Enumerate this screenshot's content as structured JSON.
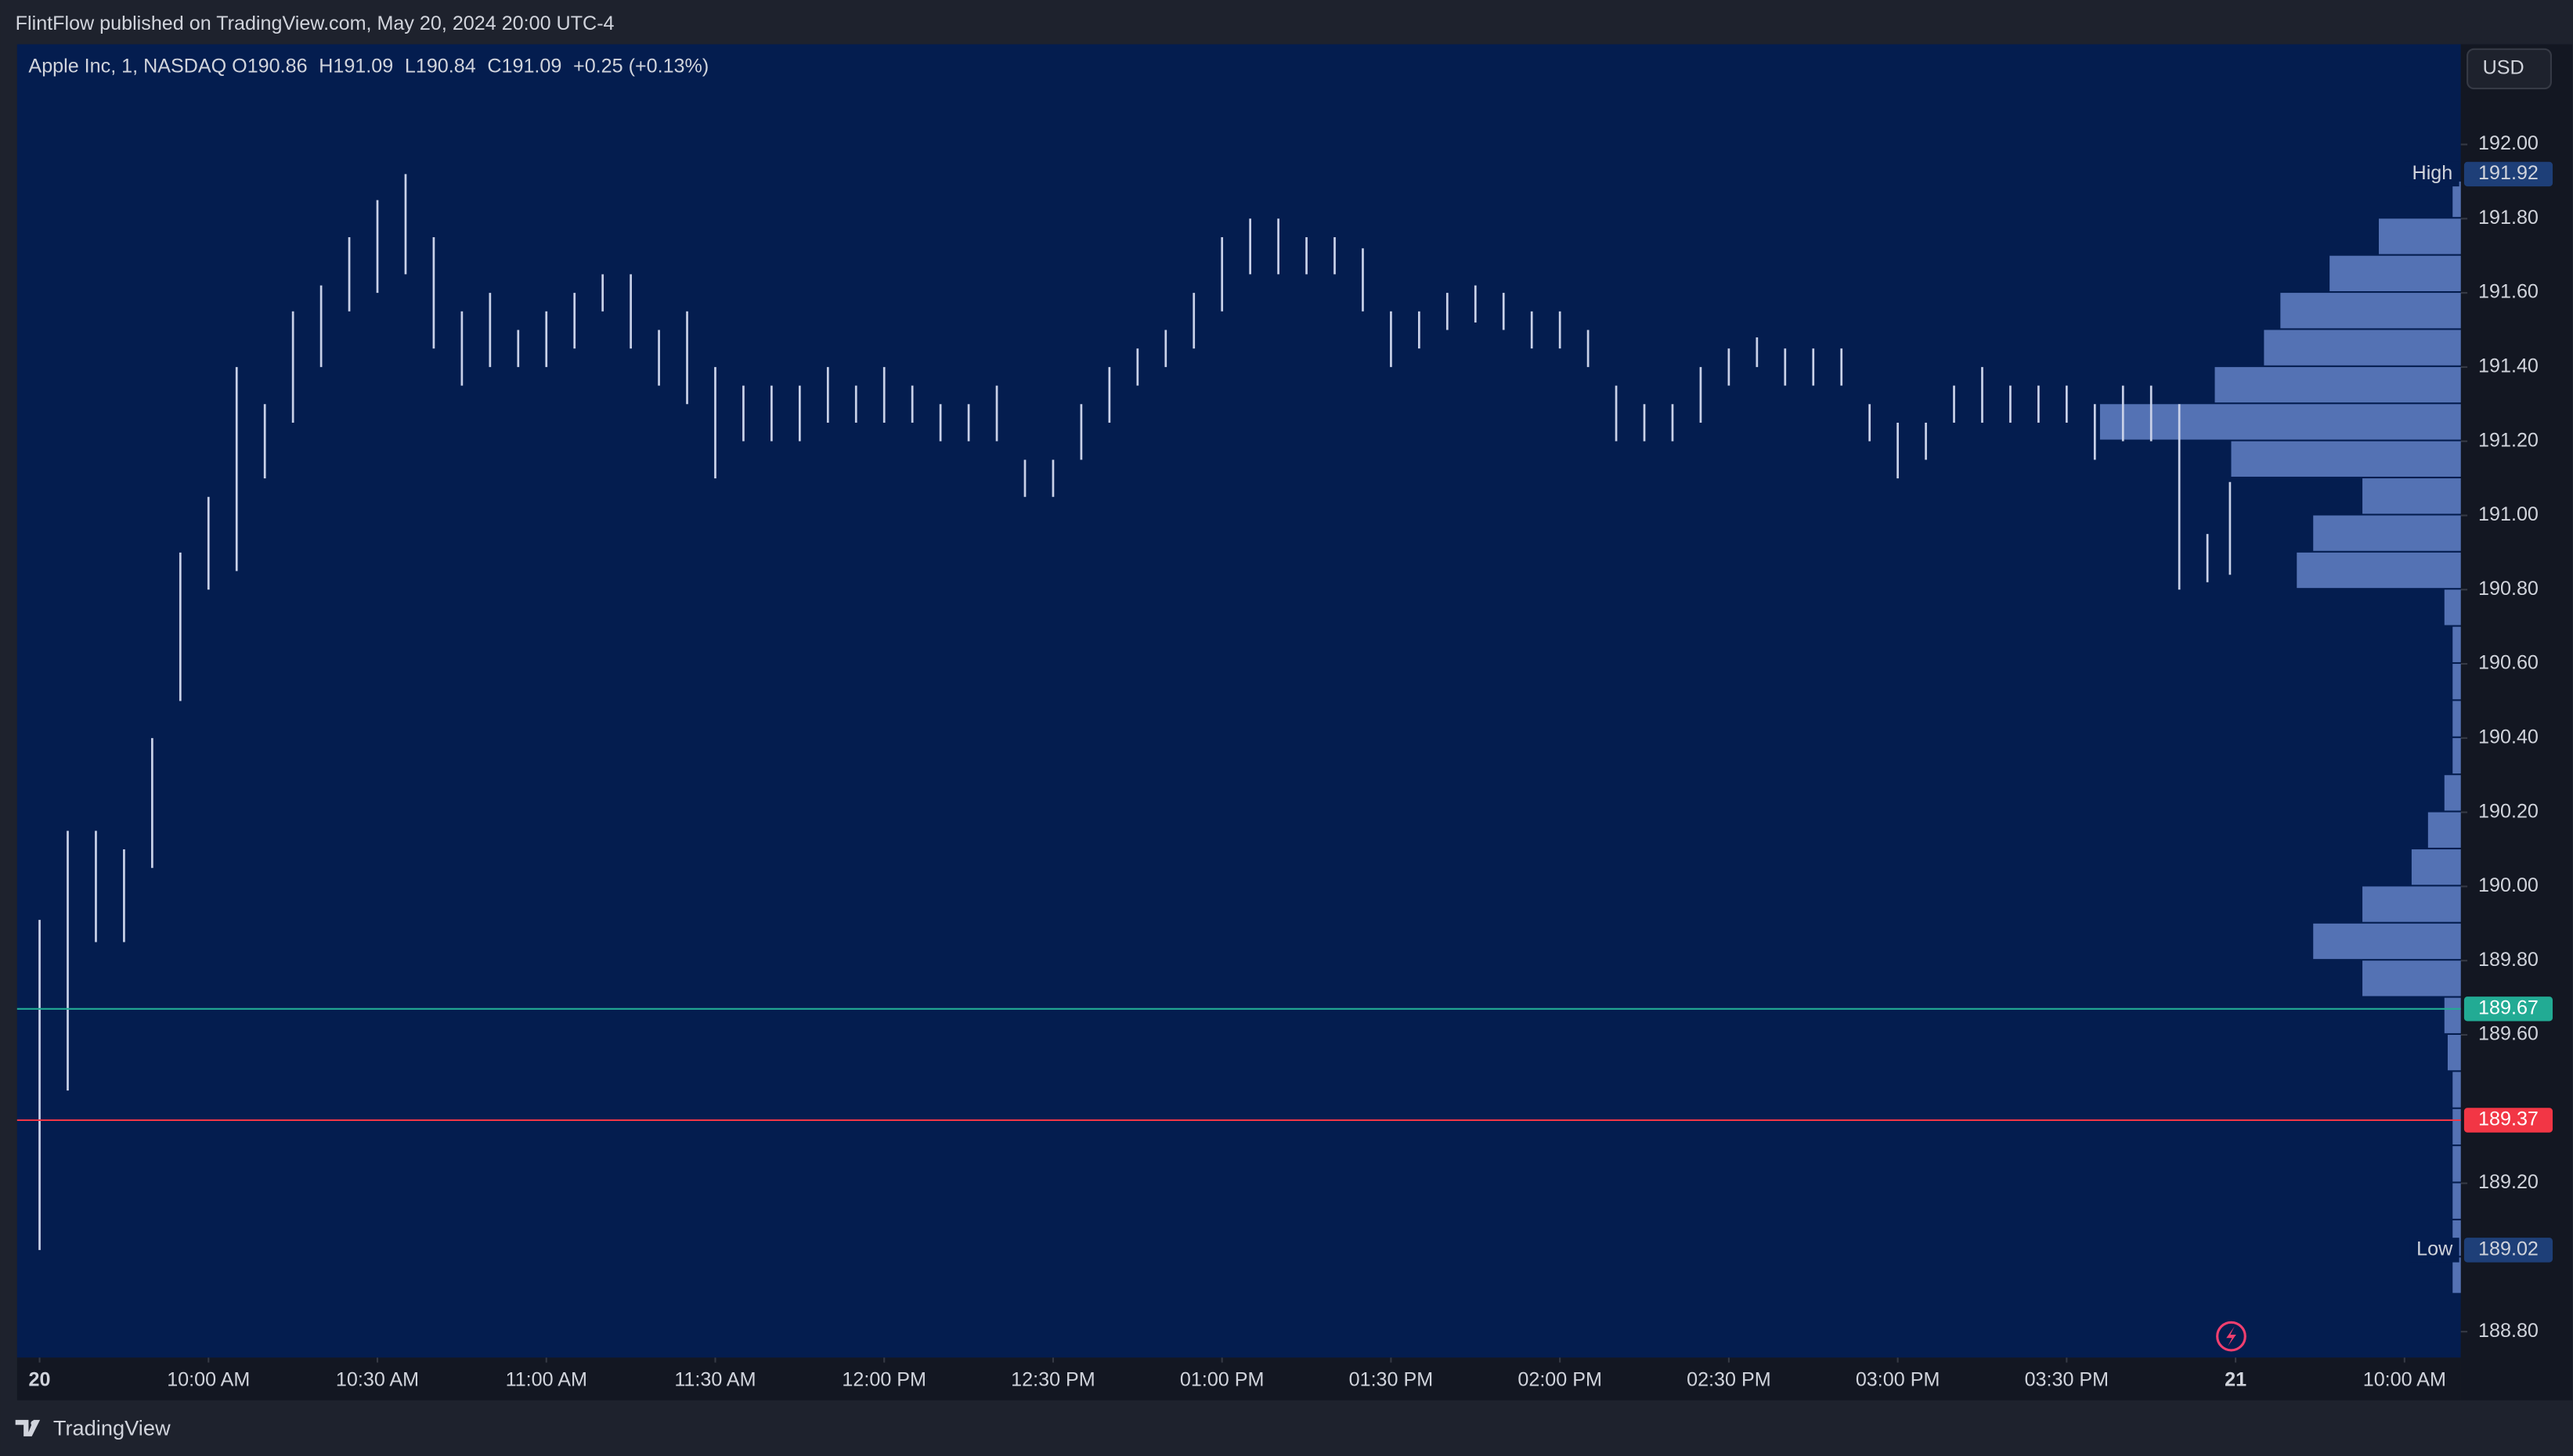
{
  "header": {
    "published": "FlintFlow published on TradingView.com, May 20, 2024 20:00 UTC-4"
  },
  "footer": {
    "brand": "TradingView"
  },
  "currency_button": "USD",
  "chart_data": {
    "type": "ohlc",
    "title": "Apple Inc, 1, NASDAQ",
    "ohlc_legend": [
      "O190.86",
      "H191.09",
      "L190.84",
      "C191.09",
      "+0.25 (+0.13%)"
    ],
    "color": "#c9d1e8",
    "x": [
      0,
      5,
      10,
      15,
      20,
      25,
      30,
      35,
      40,
      45,
      50,
      55,
      60,
      65,
      70,
      75,
      80,
      85,
      90,
      95,
      100,
      105,
      110,
      115,
      120,
      125,
      130,
      135,
      140,
      145,
      150,
      155,
      160,
      165,
      170,
      175,
      180,
      185,
      190,
      195,
      200,
      205,
      210,
      215,
      220,
      225,
      230,
      235,
      240,
      245,
      250,
      255,
      260,
      265,
      270,
      275,
      280,
      285,
      290,
      295,
      300,
      305,
      310,
      315,
      320,
      325,
      330,
      335,
      340,
      345,
      350,
      355,
      360,
      365,
      370,
      375,
      380,
      385,
      389
    ],
    "high": [
      189.91,
      190.15,
      190.15,
      190.1,
      190.4,
      190.9,
      191.05,
      191.4,
      191.3,
      191.55,
      191.62,
      191.75,
      191.85,
      191.92,
      191.75,
      191.55,
      191.6,
      191.5,
      191.55,
      191.6,
      191.65,
      191.65,
      191.5,
      191.55,
      191.4,
      191.35,
      191.35,
      191.35,
      191.4,
      191.35,
      191.4,
      191.35,
      191.3,
      191.3,
      191.35,
      191.15,
      191.15,
      191.3,
      191.4,
      191.45,
      191.5,
      191.6,
      191.75,
      191.8,
      191.8,
      191.75,
      191.75,
      191.72,
      191.55,
      191.55,
      191.6,
      191.62,
      191.6,
      191.55,
      191.55,
      191.5,
      191.35,
      191.3,
      191.3,
      191.4,
      191.45,
      191.48,
      191.45,
      191.45,
      191.45,
      191.3,
      191.25,
      191.25,
      191.35,
      191.4,
      191.35,
      191.35,
      191.35,
      191.3,
      191.35,
      191.35,
      191.3,
      190.95,
      191.09
    ],
    "low": [
      189.02,
      189.45,
      189.85,
      189.85,
      190.05,
      190.5,
      190.8,
      190.85,
      191.1,
      191.25,
      191.4,
      191.55,
      191.6,
      191.65,
      191.45,
      191.35,
      191.4,
      191.4,
      191.4,
      191.45,
      191.55,
      191.45,
      191.35,
      191.3,
      191.1,
      191.2,
      191.2,
      191.2,
      191.25,
      191.25,
      191.25,
      191.25,
      191.2,
      191.2,
      191.2,
      191.05,
      191.05,
      191.15,
      191.25,
      191.35,
      191.4,
      191.45,
      191.55,
      191.65,
      191.65,
      191.65,
      191.65,
      191.55,
      191.4,
      191.45,
      191.5,
      191.52,
      191.5,
      191.45,
      191.45,
      191.4,
      191.2,
      191.2,
      191.2,
      191.25,
      191.35,
      191.4,
      191.35,
      191.35,
      191.35,
      191.2,
      191.1,
      191.15,
      191.25,
      191.25,
      191.25,
      191.25,
      191.25,
      191.15,
      191.2,
      191.2,
      190.8,
      190.82,
      190.84
    ],
    "xlim": [
      -4,
      430
    ],
    "xticks": [
      {
        "value": 0,
        "label": "20"
      },
      {
        "value": 30,
        "label": "10:00 AM"
      },
      {
        "value": 60,
        "label": "10:30 AM"
      },
      {
        "value": 90,
        "label": "11:00 AM"
      },
      {
        "value": 120,
        "label": "11:30 AM"
      },
      {
        "value": 150,
        "label": "12:00 PM"
      },
      {
        "value": 180,
        "label": "12:30 PM"
      },
      {
        "value": 210,
        "label": "01:00 PM"
      },
      {
        "value": 240,
        "label": "01:30 PM"
      },
      {
        "value": 270,
        "label": "02:00 PM"
      },
      {
        "value": 300,
        "label": "02:30 PM"
      },
      {
        "value": 330,
        "label": "03:00 PM"
      },
      {
        "value": 360,
        "label": "03:30 PM"
      },
      {
        "value": 390,
        "label": "21"
      },
      {
        "value": 420,
        "label": "10:00 AM"
      }
    ],
    "ylim": [
      188.73,
      192.27
    ],
    "yticks": [
      {
        "value": 188.8,
        "label": "188.80"
      },
      {
        "value": 189.2,
        "label": "189.20"
      },
      {
        "value": 189.6,
        "label": "189.60"
      },
      {
        "value": 189.8,
        "label": "189.80"
      },
      {
        "value": 190,
        "label": "190.00"
      },
      {
        "value": 190.2,
        "label": "190.20"
      },
      {
        "value": 190.4,
        "label": "190.40"
      },
      {
        "value": 190.6,
        "label": "190.60"
      },
      {
        "value": 190.8,
        "label": "190.80"
      },
      {
        "value": 191,
        "label": "191.00"
      },
      {
        "value": 191.2,
        "label": "191.20"
      },
      {
        "value": 191.4,
        "label": "191.40"
      },
      {
        "value": 191.6,
        "label": "191.60"
      },
      {
        "value": 191.8,
        "label": "191.80"
      },
      {
        "value": 192,
        "label": "192.00"
      }
    ],
    "profile": {
      "color": "#6f8fd6",
      "prices": [
        191.9,
        191.8,
        191.7,
        191.6,
        191.5,
        191.4,
        191.3,
        191.2,
        191.1,
        191.0,
        190.9,
        190.8,
        190.7,
        190.6,
        190.5,
        190.4,
        190.3,
        190.2,
        190.1,
        190.0,
        189.9,
        189.8,
        189.7,
        189.6,
        189.5,
        189.4,
        189.3,
        189.2,
        189.1,
        189.0
      ],
      "volumes": [
        5,
        50,
        80,
        110,
        120,
        150,
        220,
        140,
        60,
        90,
        100,
        10,
        5,
        5,
        5,
        5,
        10,
        20,
        30,
        60,
        90,
        60,
        10,
        8,
        5,
        5,
        5,
        5,
        5,
        5
      ]
    },
    "levels": [
      {
        "name": "High",
        "value": 191.92,
        "color": "#1e3f78"
      },
      {
        "name": "Low",
        "value": 189.02,
        "color": "#1e3f78"
      }
    ],
    "lines": [
      {
        "value": 189.67,
        "color": "#22ab94"
      },
      {
        "value": 189.37,
        "color": "#f23645"
      }
    ]
  }
}
